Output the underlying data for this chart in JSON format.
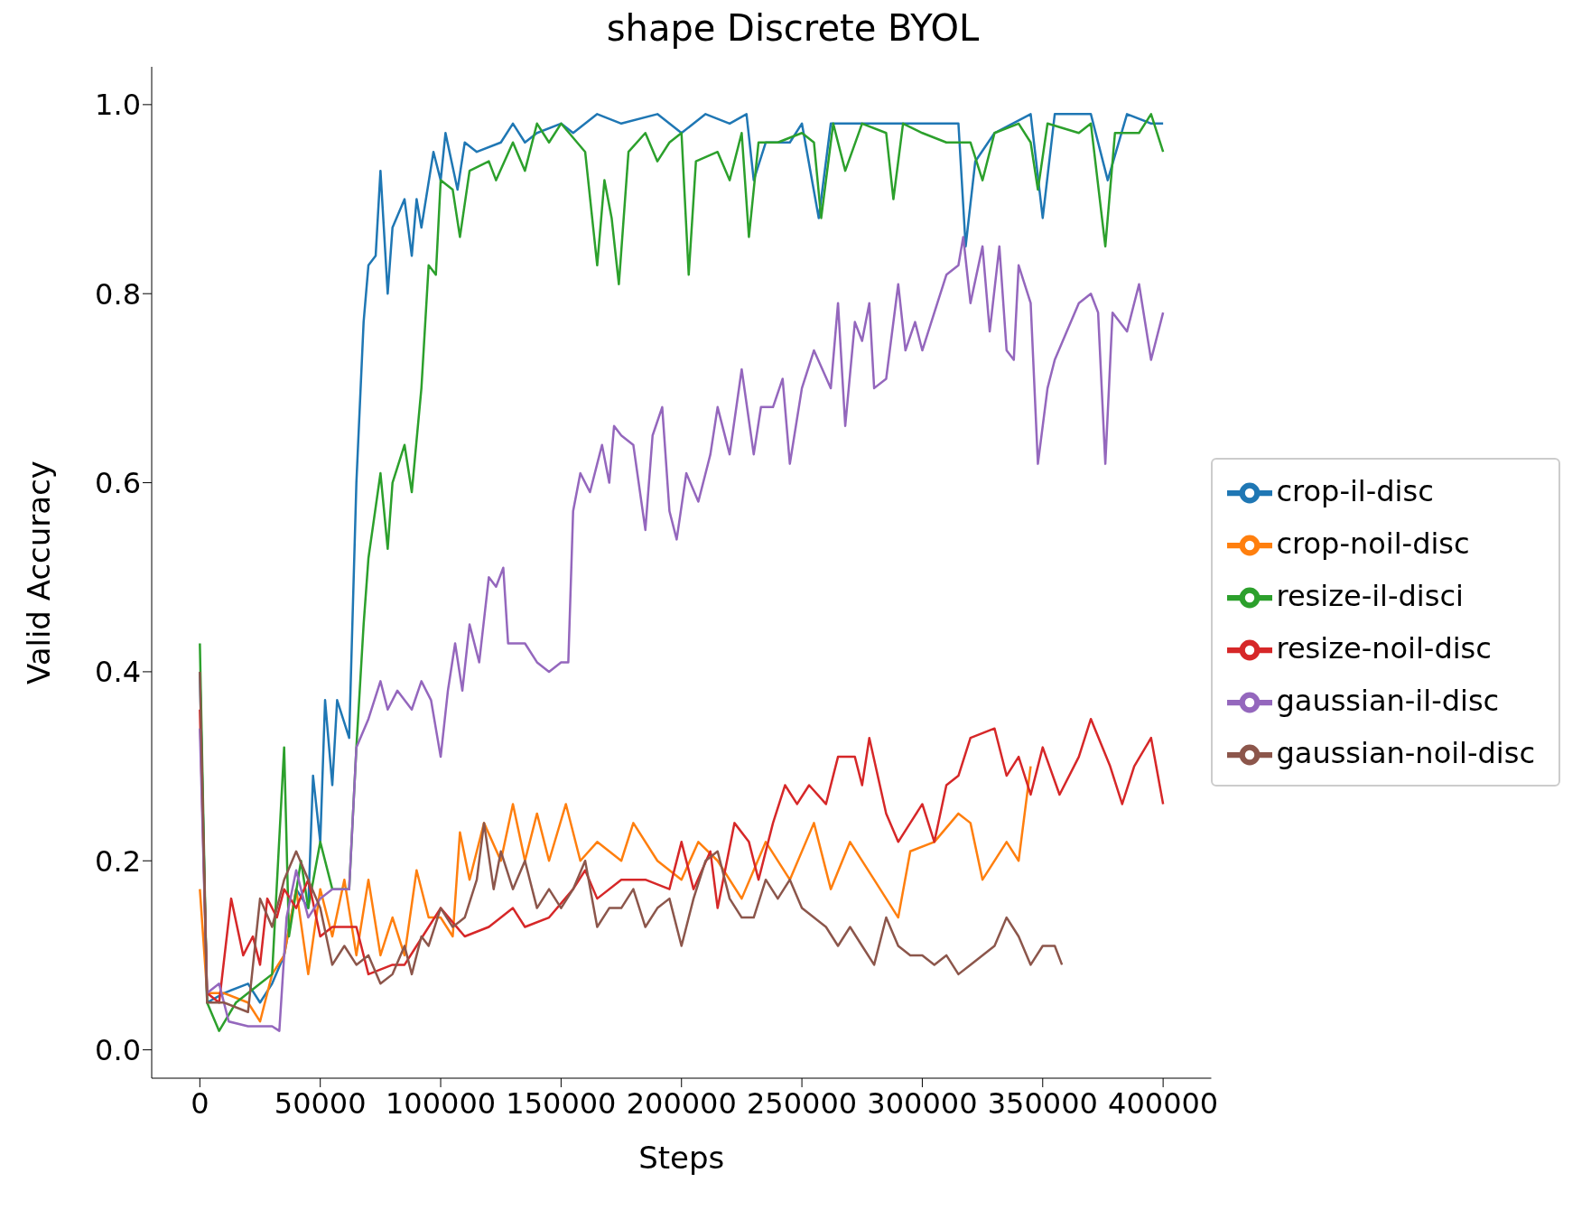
{
  "chart_data": {
    "type": "line",
    "title": "shape Discrete BYOL",
    "xlabel": "Steps",
    "ylabel": "Valid Accuracy",
    "xlim": [
      -20000,
      420000
    ],
    "xticks": [
      0,
      50000,
      100000,
      150000,
      200000,
      250000,
      300000,
      350000,
      400000
    ],
    "ylim": [
      -0.03,
      1.04
    ],
    "yticks": [
      {
        "value": 0,
        "label": "0.0"
      },
      {
        "value": 0.2,
        "label": "0.2"
      },
      {
        "value": 0.4,
        "label": "0.4"
      },
      {
        "value": 0.6,
        "label": "0.6"
      },
      {
        "value": 0.8,
        "label": "0.8"
      },
      {
        "value": 1,
        "label": "1.0"
      }
    ],
    "legend": "right",
    "line_style": "solid",
    "series": [
      {
        "name": "crop-il-disc",
        "color": "#1f77b4",
        "x": [
          0,
          3000,
          10000,
          20000,
          25000,
          30000,
          35000,
          40000,
          45000,
          47000,
          50000,
          52000,
          55000,
          57000,
          62000,
          65000,
          68000,
          70000,
          73000,
          75000,
          78000,
          80000,
          85000,
          88000,
          90000,
          92000,
          97000,
          100000,
          102000,
          107000,
          110000,
          115000,
          125000,
          130000,
          135000,
          140000,
          150000,
          155000,
          165000,
          175000,
          190000,
          200000,
          210000,
          220000,
          227000,
          230000,
          235000,
          245000,
          250000,
          257000,
          262000,
          280000,
          300000,
          315000,
          318000,
          322000,
          330000,
          345000,
          350000,
          355000,
          370000,
          377000,
          385000,
          395000,
          400000
        ],
        "values": [
          0.4,
          0.05,
          0.06,
          0.07,
          0.05,
          0.07,
          0.1,
          0.17,
          0.15,
          0.29,
          0.22,
          0.37,
          0.28,
          0.37,
          0.33,
          0.6,
          0.77,
          0.83,
          0.84,
          0.93,
          0.8,
          0.87,
          0.9,
          0.84,
          0.9,
          0.87,
          0.95,
          0.92,
          0.97,
          0.91,
          0.96,
          0.95,
          0.96,
          0.98,
          0.96,
          0.97,
          0.98,
          0.97,
          0.99,
          0.98,
          0.99,
          0.97,
          0.99,
          0.98,
          0.99,
          0.92,
          0.96,
          0.96,
          0.98,
          0.88,
          0.98,
          0.98,
          0.98,
          0.98,
          0.85,
          0.94,
          0.97,
          0.99,
          0.88,
          0.99,
          0.99,
          0.92,
          0.99,
          0.98,
          0.98
        ]
      },
      {
        "name": "crop-noil-disc",
        "color": "#ff7f0e",
        "x": [
          0,
          3000,
          10000,
          20000,
          25000,
          30000,
          35000,
          40000,
          45000,
          50000,
          55000,
          60000,
          65000,
          70000,
          75000,
          80000,
          85000,
          90000,
          95000,
          100000,
          105000,
          108000,
          112000,
          118000,
          125000,
          130000,
          135000,
          140000,
          145000,
          152000,
          158000,
          165000,
          175000,
          180000,
          190000,
          200000,
          207000,
          215000,
          225000,
          235000,
          245000,
          255000,
          262000,
          270000,
          280000,
          290000,
          295000,
          305000,
          315000,
          320000,
          325000,
          335000,
          340000,
          345000
        ],
        "values": [
          0.17,
          0.06,
          0.06,
          0.05,
          0.03,
          0.08,
          0.1,
          0.17,
          0.08,
          0.17,
          0.12,
          0.18,
          0.1,
          0.18,
          0.1,
          0.14,
          0.1,
          0.19,
          0.14,
          0.14,
          0.12,
          0.23,
          0.18,
          0.24,
          0.2,
          0.26,
          0.2,
          0.25,
          0.2,
          0.26,
          0.2,
          0.22,
          0.2,
          0.24,
          0.2,
          0.18,
          0.22,
          0.2,
          0.16,
          0.22,
          0.18,
          0.24,
          0.17,
          0.22,
          0.18,
          0.14,
          0.21,
          0.22,
          0.25,
          0.24,
          0.18,
          0.22,
          0.2,
          0.3
        ]
      },
      {
        "name": "resize-il-disci",
        "color": "#2ca02c",
        "x": [
          0,
          3000,
          8000,
          15000,
          25000,
          30000,
          35000,
          37000,
          42000,
          45000,
          50000,
          55000,
          62000,
          65000,
          68000,
          70000,
          75000,
          78000,
          80000,
          85000,
          88000,
          92000,
          95000,
          98000,
          100000,
          105000,
          108000,
          112000,
          120000,
          123000,
          130000,
          135000,
          140000,
          145000,
          150000,
          160000,
          165000,
          168000,
          171000,
          174000,
          178000,
          185000,
          190000,
          195000,
          200000,
          203000,
          206000,
          215000,
          220000,
          225000,
          228000,
          232000,
          240000,
          250000,
          255000,
          258000,
          263000,
          268000,
          275000,
          285000,
          288000,
          292000,
          300000,
          310000,
          320000,
          325000,
          330000,
          340000,
          345000,
          348000,
          352000,
          365000,
          370000,
          376000,
          380000,
          390000,
          395000,
          400000
        ],
        "values": [
          0.43,
          0.05,
          0.02,
          0.05,
          0.07,
          0.08,
          0.32,
          0.12,
          0.2,
          0.15,
          0.22,
          0.17,
          0.17,
          0.32,
          0.45,
          0.52,
          0.61,
          0.53,
          0.6,
          0.64,
          0.59,
          0.7,
          0.83,
          0.82,
          0.92,
          0.91,
          0.86,
          0.93,
          0.94,
          0.92,
          0.96,
          0.93,
          0.98,
          0.96,
          0.98,
          0.95,
          0.83,
          0.92,
          0.88,
          0.81,
          0.95,
          0.97,
          0.94,
          0.96,
          0.97,
          0.82,
          0.94,
          0.95,
          0.92,
          0.97,
          0.86,
          0.96,
          0.96,
          0.97,
          0.96,
          0.88,
          0.98,
          0.93,
          0.98,
          0.97,
          0.9,
          0.98,
          0.97,
          0.96,
          0.96,
          0.92,
          0.97,
          0.98,
          0.96,
          0.91,
          0.98,
          0.97,
          0.98,
          0.85,
          0.97,
          0.97,
          0.99,
          0.95
        ]
      },
      {
        "name": "resize-noil-disc",
        "color": "#d62728",
        "x": [
          0,
          3000,
          8000,
          13000,
          18000,
          22000,
          25000,
          28000,
          32000,
          35000,
          40000,
          45000,
          50000,
          55000,
          65000,
          70000,
          80000,
          85000,
          90000,
          100000,
          110000,
          120000,
          130000,
          135000,
          145000,
          155000,
          160000,
          165000,
          175000,
          185000,
          195000,
          200000,
          205000,
          212000,
          215000,
          222000,
          228000,
          232000,
          238000,
          243000,
          248000,
          253000,
          260000,
          265000,
          272000,
          275000,
          278000,
          285000,
          290000,
          295000,
          300000,
          305000,
          310000,
          315000,
          320000,
          330000,
          335000,
          340000,
          345000,
          350000,
          357000,
          365000,
          370000,
          378000,
          383000,
          388000,
          395000,
          400000
        ],
        "values": [
          0.36,
          0.06,
          0.05,
          0.16,
          0.1,
          0.12,
          0.09,
          0.16,
          0.14,
          0.17,
          0.15,
          0.18,
          0.12,
          0.13,
          0.13,
          0.08,
          0.09,
          0.09,
          0.11,
          0.15,
          0.12,
          0.13,
          0.15,
          0.13,
          0.14,
          0.17,
          0.19,
          0.16,
          0.18,
          0.18,
          0.17,
          0.22,
          0.17,
          0.21,
          0.15,
          0.24,
          0.22,
          0.18,
          0.24,
          0.28,
          0.26,
          0.28,
          0.26,
          0.31,
          0.31,
          0.28,
          0.33,
          0.25,
          0.22,
          0.24,
          0.26,
          0.22,
          0.28,
          0.29,
          0.33,
          0.34,
          0.29,
          0.31,
          0.27,
          0.32,
          0.27,
          0.31,
          0.35,
          0.3,
          0.26,
          0.3,
          0.33,
          0.26
        ]
      },
      {
        "name": "gaussian-il-disc",
        "color": "#9467bd",
        "x": [
          0,
          3000,
          8000,
          12000,
          20000,
          30000,
          33000,
          36000,
          40000,
          45000,
          50000,
          55000,
          62000,
          65000,
          70000,
          75000,
          78000,
          82000,
          88000,
          92000,
          96000,
          100000,
          103000,
          106000,
          109000,
          112000,
          116000,
          120000,
          123000,
          126000,
          128000,
          135000,
          140000,
          145000,
          150000,
          153000,
          155000,
          158000,
          162000,
          167000,
          170000,
          172000,
          175000,
          180000,
          185000,
          188000,
          192000,
          195000,
          198000,
          202000,
          207000,
          212000,
          215000,
          220000,
          225000,
          230000,
          233000,
          238000,
          242000,
          245000,
          250000,
          255000,
          262000,
          265000,
          268000,
          272000,
          275000,
          278000,
          280000,
          285000,
          290000,
          293000,
          297000,
          300000,
          305000,
          310000,
          315000,
          317000,
          320000,
          325000,
          328000,
          332000,
          335000,
          338000,
          340000,
          345000,
          348000,
          352000,
          355000,
          360000,
          365000,
          370000,
          373000,
          376000,
          379000,
          385000,
          390000,
          395000,
          400000
        ],
        "values": [
          0.34,
          0.06,
          0.07,
          0.03,
          0.025,
          0.025,
          0.02,
          0.14,
          0.19,
          0.14,
          0.16,
          0.17,
          0.17,
          0.32,
          0.35,
          0.39,
          0.36,
          0.38,
          0.36,
          0.39,
          0.37,
          0.31,
          0.38,
          0.43,
          0.38,
          0.45,
          0.41,
          0.5,
          0.49,
          0.51,
          0.43,
          0.43,
          0.41,
          0.4,
          0.41,
          0.41,
          0.57,
          0.61,
          0.59,
          0.64,
          0.6,
          0.66,
          0.65,
          0.64,
          0.55,
          0.65,
          0.68,
          0.57,
          0.54,
          0.61,
          0.58,
          0.63,
          0.68,
          0.63,
          0.72,
          0.63,
          0.68,
          0.68,
          0.71,
          0.62,
          0.7,
          0.74,
          0.7,
          0.79,
          0.66,
          0.77,
          0.75,
          0.79,
          0.7,
          0.71,
          0.81,
          0.74,
          0.77,
          0.74,
          0.78,
          0.82,
          0.83,
          0.86,
          0.79,
          0.85,
          0.76,
          0.85,
          0.74,
          0.73,
          0.83,
          0.79,
          0.62,
          0.7,
          0.73,
          0.76,
          0.79,
          0.8,
          0.78,
          0.62,
          0.78,
          0.76,
          0.81,
          0.73,
          0.78
        ]
      },
      {
        "name": "gaussian-noil-disc",
        "color": "#8c564b",
        "x": [
          0,
          3000,
          10000,
          20000,
          25000,
          30000,
          35000,
          40000,
          45000,
          50000,
          55000,
          60000,
          65000,
          70000,
          75000,
          80000,
          85000,
          88000,
          92000,
          95000,
          100000,
          105000,
          110000,
          115000,
          118000,
          122000,
          125000,
          130000,
          135000,
          140000,
          145000,
          150000,
          155000,
          160000,
          165000,
          170000,
          175000,
          180000,
          185000,
          190000,
          195000,
          200000,
          205000,
          210000,
          215000,
          220000,
          225000,
          230000,
          235000,
          240000,
          245000,
          250000,
          255000,
          260000,
          265000,
          270000,
          275000,
          280000,
          285000,
          290000,
          295000,
          300000,
          305000,
          310000,
          315000,
          320000,
          325000,
          330000,
          335000,
          340000,
          345000,
          350000,
          355000,
          358000
        ],
        "values": [
          0.4,
          0.05,
          0.05,
          0.04,
          0.16,
          0.13,
          0.18,
          0.21,
          0.18,
          0.15,
          0.09,
          0.11,
          0.09,
          0.1,
          0.07,
          0.08,
          0.11,
          0.08,
          0.12,
          0.11,
          0.15,
          0.13,
          0.14,
          0.18,
          0.24,
          0.17,
          0.21,
          0.17,
          0.2,
          0.15,
          0.17,
          0.15,
          0.17,
          0.2,
          0.13,
          0.15,
          0.15,
          0.17,
          0.13,
          0.15,
          0.16,
          0.11,
          0.16,
          0.2,
          0.21,
          0.16,
          0.14,
          0.14,
          0.18,
          0.16,
          0.18,
          0.15,
          0.14,
          0.13,
          0.11,
          0.13,
          0.11,
          0.09,
          0.14,
          0.11,
          0.1,
          0.1,
          0.09,
          0.1,
          0.08,
          0.09,
          0.1,
          0.11,
          0.14,
          0.12,
          0.09,
          0.11,
          0.11,
          0.09
        ]
      }
    ]
  }
}
